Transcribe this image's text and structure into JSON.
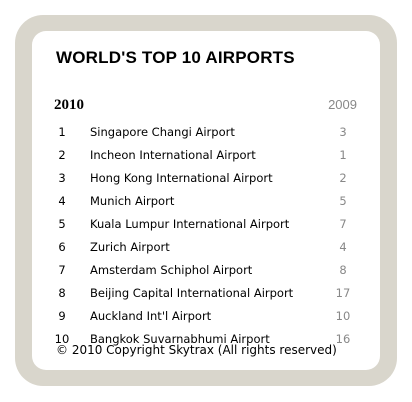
{
  "title": "WORLD'S TOP 10 AIRPORTS",
  "headers": {
    "current_year": "2010",
    "previous_year": "2009"
  },
  "rows": [
    {
      "rank": "1",
      "name": "Singapore Changi Airport",
      "prev": "3"
    },
    {
      "rank": "2",
      "name": "Incheon International Airport",
      "prev": "1"
    },
    {
      "rank": "3",
      "name": "Hong Kong International Airport",
      "prev": "2"
    },
    {
      "rank": "4",
      "name": "Munich Airport",
      "prev": "5"
    },
    {
      "rank": "5",
      "name": "Kuala Lumpur International Airport",
      "prev": "7"
    },
    {
      "rank": "6",
      "name": "Zurich Airport",
      "prev": "4"
    },
    {
      "rank": "7",
      "name": "Amsterdam Schiphol Airport",
      "prev": "8"
    },
    {
      "rank": "8",
      "name": "Beijing Capital International Airport",
      "prev": "17"
    },
    {
      "rank": "9",
      "name": "Auckland Int'l Airport",
      "prev": "10"
    },
    {
      "rank": "10",
      "name": "Bangkok Suvarnabhumi Airport",
      "prev": "16"
    }
  ],
  "footer": "© 2010 Copyright Skytrax (All rights reserved)"
}
